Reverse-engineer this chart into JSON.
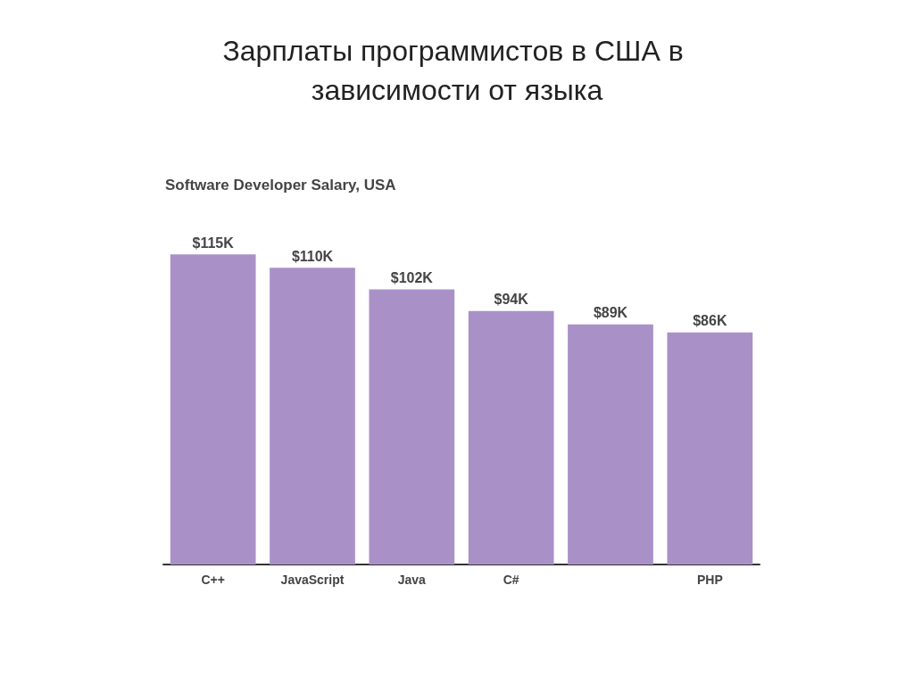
{
  "chart_data": {
    "type": "bar",
    "title": "Зарплаты программистов в США в зависимости от языка",
    "subtitle": "Software Developer Salary, USA",
    "categories": [
      "C++",
      "JavaScript",
      "Java",
      "C#",
      null,
      "PHP"
    ],
    "values": [
      115,
      110,
      102,
      94,
      89,
      86
    ],
    "value_labels": [
      "$115K",
      "$110K",
      "$102K",
      "$94K",
      "$89K",
      "$86K"
    ],
    "color": "#a991c8"
  }
}
